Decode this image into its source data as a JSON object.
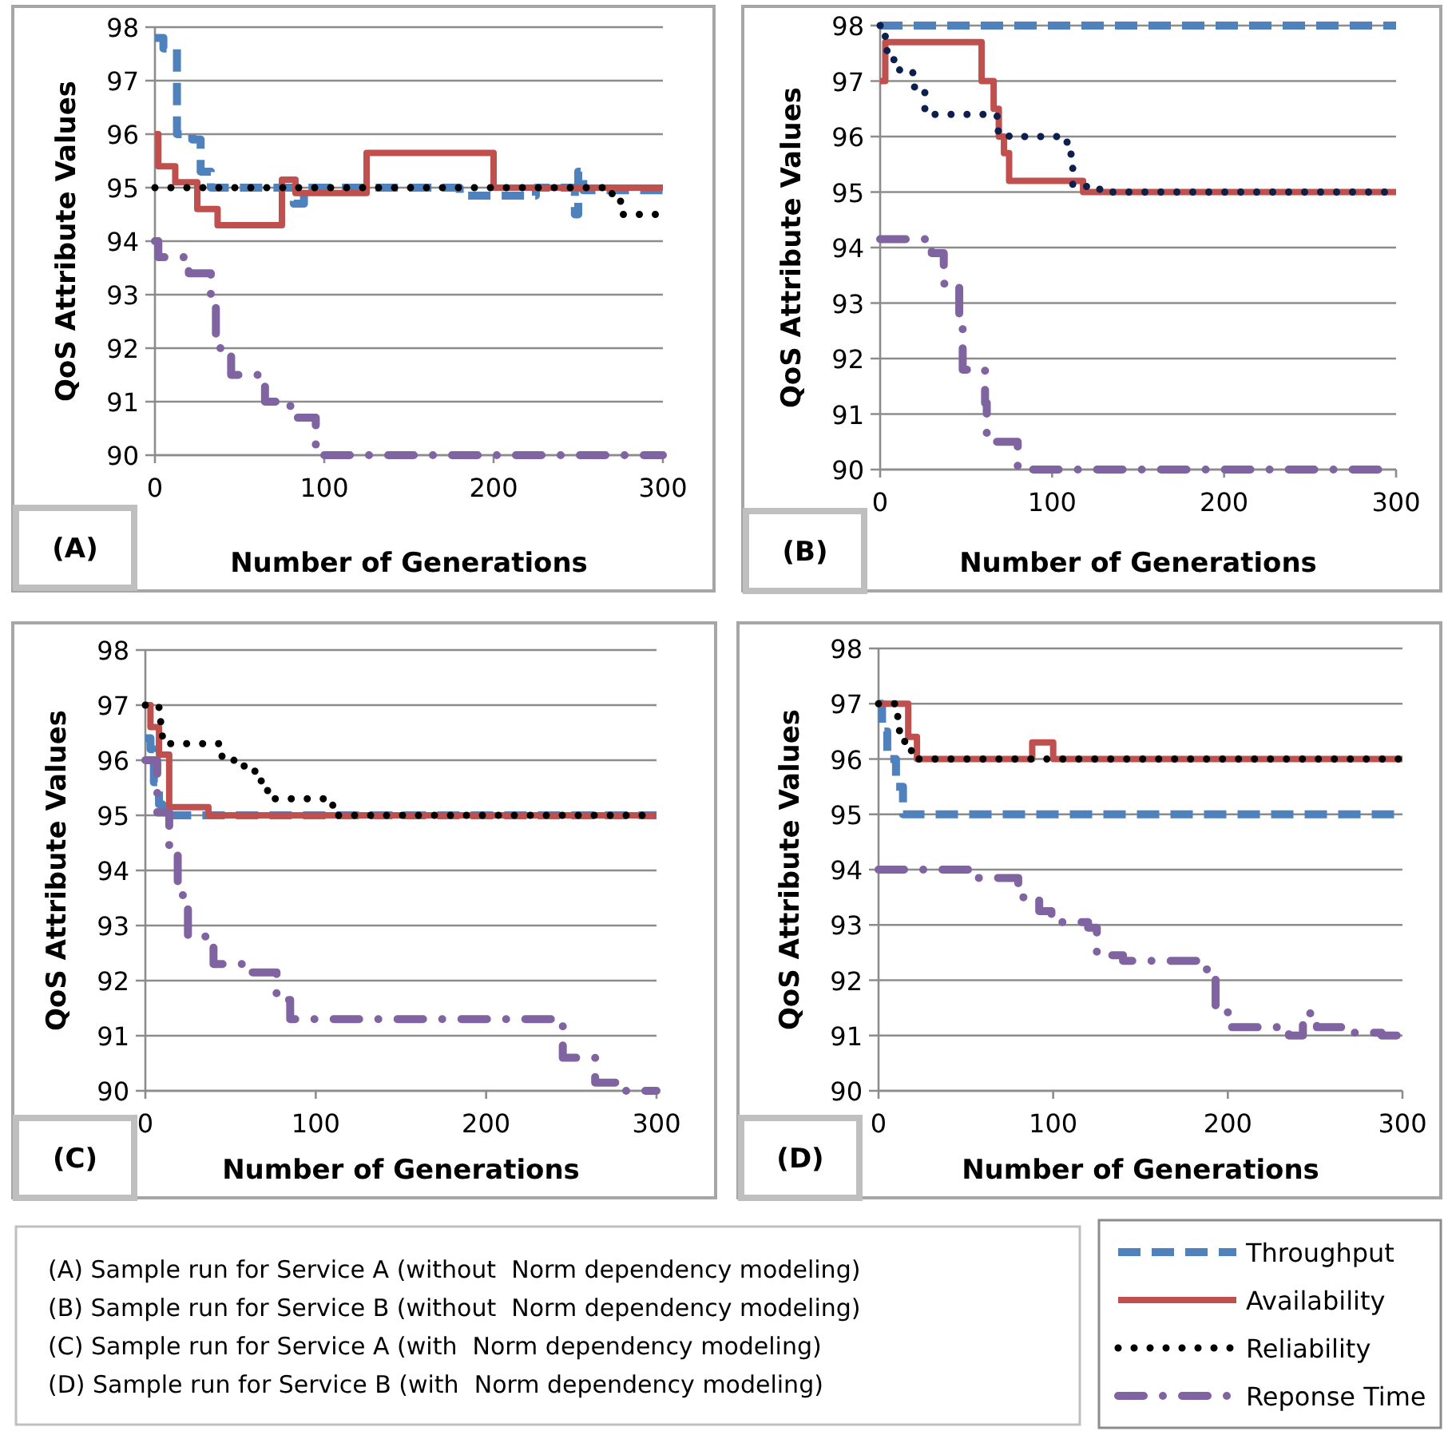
{
  "chart_data": [
    {
      "type": "step",
      "title": "(A)",
      "xlabel": "Number of Generations",
      "ylabel": "QoS Attribute Values",
      "xlim": [
        0,
        300
      ],
      "xticks": [
        0,
        100,
        200,
        300
      ],
      "ylim": [
        90,
        98
      ],
      "yticks": [
        90,
        91,
        92,
        93,
        94,
        95,
        96,
        97,
        98
      ],
      "grid": "y",
      "legend": "bottom right",
      "marker": "none",
      "annotations": [
        "(A) Sample run for Service A (without  Norm dependency modeling)"
      ],
      "series": [
        {
          "name": "Throughput",
          "color": "#4f81bd",
          "line_style": "dashed",
          "x": [
            0,
            5,
            13,
            22,
            27,
            33,
            82,
            88,
            180,
            215,
            225,
            248,
            250,
            253,
            300
          ],
          "values": [
            97.8,
            97.6,
            96.0,
            95.9,
            95.3,
            95.0,
            94.7,
            95.0,
            94.85,
            94.85,
            95.0,
            94.5,
            95.3,
            94.95,
            94.95
          ]
        },
        {
          "name": "Availability",
          "color": "#c0504d",
          "line_style": "solid",
          "x": [
            0,
            2,
            12,
            25,
            37,
            75,
            83,
            125,
            200,
            300
          ],
          "values": [
            96.0,
            95.4,
            95.1,
            94.6,
            94.3,
            95.15,
            94.9,
            95.65,
            95.0,
            95.0
          ]
        },
        {
          "name": "Reliability",
          "color": "#000000",
          "line_style": "dotted",
          "x": [
            0,
            270,
            275,
            300
          ],
          "values": [
            95.0,
            94.8,
            94.5,
            94.5
          ]
        },
        {
          "name": "Reponse Time",
          "color": "#8064a2",
          "line_style": "dashdot",
          "x": [
            0,
            2,
            20,
            33,
            36,
            45,
            65,
            80,
            95,
            300
          ],
          "values": [
            94.0,
            93.7,
            93.4,
            93.0,
            92.0,
            91.5,
            91.0,
            90.7,
            90.0,
            90.0
          ]
        }
      ]
    },
    {
      "type": "step",
      "title": "(B)",
      "xlabel": "Number of Generations",
      "ylabel": "QoS Attribute Values",
      "xlim": [
        0,
        300
      ],
      "xticks": [
        0,
        100,
        200,
        300
      ],
      "ylim": [
        90,
        98
      ],
      "yticks": [
        90,
        91,
        92,
        93,
        94,
        95,
        96,
        97,
        98
      ],
      "grid": "y",
      "marker": "none",
      "annotations": [
        "(B) Sample run for Service B (without  Norm dependency modeling)"
      ],
      "series": [
        {
          "color": "#4f81bd",
          "line_style": "dashed",
          "x": [
            0,
            300
          ],
          "values": [
            98.0,
            98.0
          ]
        },
        {
          "color": "#c0504d",
          "line_style": "solid",
          "x": [
            0,
            3,
            59,
            66,
            69,
            72,
            75,
            118,
            300
          ],
          "values": [
            97.0,
            97.7,
            97.0,
            96.5,
            96.0,
            95.7,
            95.2,
            95.0,
            95.0
          ]
        },
        {
          "color": "#0d1f4d",
          "line_style": "dotted",
          "x": [
            0,
            3,
            4,
            8,
            17,
            20,
            26,
            68,
            75,
            106,
            110,
            111,
            112,
            122,
            135,
            300
          ],
          "values": [
            98.0,
            97.8,
            97.45,
            97.2,
            97.15,
            96.85,
            96.4,
            96.1,
            96.0,
            95.9,
            95.75,
            95.45,
            95.1,
            95.05,
            95.0,
            95.0
          ]
        },
        {
          "color": "#8064a2",
          "line_style": "dashdot",
          "x": [
            0,
            30,
            37,
            46,
            48,
            61,
            62,
            80,
            300
          ],
          "values": [
            94.15,
            93.9,
            93.35,
            92.55,
            91.8,
            91.2,
            90.5,
            90.0,
            90.0
          ]
        }
      ]
    },
    {
      "type": "step",
      "title": "(C)",
      "xlabel": "Number of Generations",
      "ylabel": "QoS Attribute Values",
      "xlim": [
        0,
        300
      ],
      "xticks": [
        0,
        100,
        200,
        300
      ],
      "ylim": [
        90,
        98
      ],
      "yticks": [
        90,
        91,
        92,
        93,
        94,
        95,
        96,
        97,
        98
      ],
      "grid": "y",
      "marker": "none",
      "annotations": [
        "(C) Sample run for Service A (with  Norm dependency modeling)"
      ],
      "series": [
        {
          "color": "#4f81bd",
          "line_style": "dashed",
          "x": [
            0,
            3,
            5,
            8,
            10,
            300
          ],
          "values": [
            96.4,
            96.2,
            95.6,
            95.2,
            95.0,
            95.0
          ]
        },
        {
          "color": "#c0504d",
          "line_style": "solid",
          "x": [
            0,
            3,
            8,
            14,
            37,
            300
          ],
          "values": [
            97.0,
            96.6,
            96.1,
            95.15,
            95.0,
            95.0
          ]
        },
        {
          "color": "#000000",
          "line_style": "dotted",
          "x": [
            0,
            8,
            9,
            10,
            45,
            52,
            58,
            65,
            68,
            75,
            106,
            110,
            300
          ],
          "values": [
            97.0,
            96.9,
            96.6,
            96.3,
            96.05,
            95.95,
            95.8,
            95.75,
            95.45,
            95.3,
            95.25,
            95.0,
            95.0
          ]
        },
        {
          "color": "#8064a2",
          "line_style": "dashdot",
          "x": [
            0,
            7,
            14,
            19,
            25,
            40,
            57,
            77,
            85,
            245,
            264,
            280,
            300
          ],
          "values": [
            96.0,
            95.05,
            94.3,
            93.55,
            92.8,
            92.3,
            92.15,
            91.65,
            91.3,
            90.6,
            90.15,
            90.0,
            90.0
          ]
        }
      ]
    },
    {
      "type": "step",
      "title": "(D)",
      "xlabel": "Number of Generations",
      "ylabel": "QoS Attribute Values",
      "xlim": [
        0,
        300
      ],
      "xticks": [
        0,
        100,
        200,
        300
      ],
      "ylim": [
        90,
        98
      ],
      "yticks": [
        90,
        91,
        92,
        93,
        94,
        95,
        96,
        97,
        98
      ],
      "grid": "y",
      "marker": "none",
      "annotations": [
        "(D) Sample run for Service B (with  Norm dependency modeling)"
      ],
      "series": [
        {
          "color": "#4f81bd",
          "line_style": "dashed",
          "x": [
            0,
            2,
            5,
            10,
            14,
            300
          ],
          "values": [
            97.0,
            96.5,
            96.0,
            95.5,
            95.0,
            95.0
          ]
        },
        {
          "color": "#c0504d",
          "line_style": "solid",
          "x": [
            0,
            17,
            22,
            88,
            100,
            300
          ],
          "values": [
            97.0,
            96.4,
            96.0,
            96.3,
            96.0,
            96.0
          ]
        },
        {
          "color": "#000000",
          "line_style": "dotted",
          "x": [
            0,
            11,
            12,
            15,
            20,
            300
          ],
          "values": [
            97.0,
            96.7,
            96.4,
            96.15,
            96.0,
            96.0
          ]
        },
        {
          "color": "#8064a2",
          "line_style": "dashdot",
          "x": [
            0,
            53,
            80,
            92,
            99,
            120,
            125,
            140,
            188,
            193,
            200,
            235,
            243,
            251,
            270,
            288,
            300
          ],
          "values": [
            94.0,
            93.85,
            93.5,
            93.25,
            93.05,
            92.95,
            92.45,
            92.35,
            92.1,
            91.5,
            91.15,
            91.0,
            91.4,
            91.15,
            91.05,
            91.0,
            91.0
          ]
        }
      ]
    }
  ]
}
